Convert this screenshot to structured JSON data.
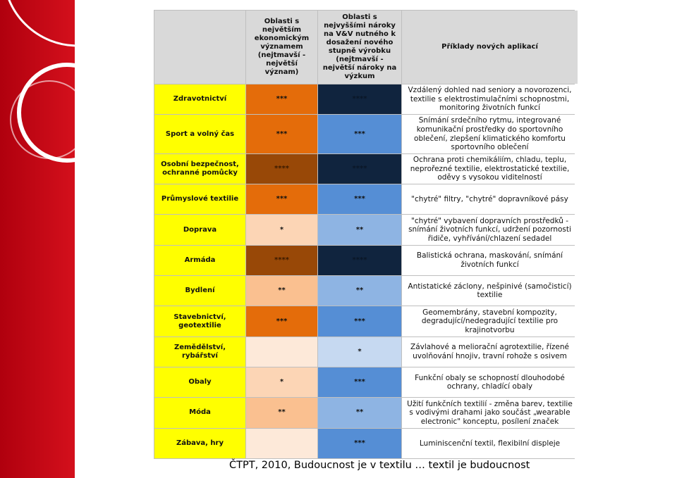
{
  "table": {
    "header": [
      "Oblasti s největším ekonomickým významem (nejtmavší - největší význam)",
      "Oblasti s nejvyššími nároky na V&V nutného k dosažení nového stupně výrobku (nejtmavší - největší nároky na výzkum",
      "Příklady nových aplikací"
    ],
    "rows": [
      {
        "sector": "Zdravotnictví",
        "economic": "***",
        "research": "****",
        "applications": "Vzdálený dohled nad seniory a novorozenci, textilie s elektrostimulačními schopnostmi, monitoring životních funkcí"
      },
      {
        "sector": "Sport a volný čas",
        "economic": "***",
        "research": "***",
        "applications": "Snímání srdečního rytmu, integrované komunikační prostředky do sportovního oblečení, zlepšení klimatického komfortu sportovního oblečení"
      },
      {
        "sector": "Osobní bezpečnost, ochranné pomůcky",
        "economic": "****",
        "research": "****",
        "applications": "Ochrana proti chemikáliím, chladu, teplu, neprořezné textilie, elektrostatické textilie, oděvy s vysokou viditelností"
      },
      {
        "sector": "Průmyslové textilie",
        "economic": "***",
        "research": "***",
        "applications": "\"chytré\" filtry, \"chytré\" dopravníkové pásy"
      },
      {
        "sector": "Doprava",
        "economic": "*",
        "research": "**",
        "applications": "\"chytré\" vybavení dopravních prostředků - snímání životních funkcí, udržení pozornosti řidiče, vyhřívání/chlazení sedadel"
      },
      {
        "sector": "Armáda",
        "economic": "****",
        "research": "****",
        "applications": "Balistická ochrana, maskování, snímání životních funkcí"
      },
      {
        "sector": "Bydlení",
        "economic": "**",
        "research": "**",
        "applications": "Antistatické záclony, nešpinivé (samočisticí) textilie"
      },
      {
        "sector": "Stavebnictví, geotextilie",
        "economic": "***",
        "research": "***",
        "applications": "Geomembrány, stavební kompozity, degradující/nedegradující textilie pro krajinotvorbu"
      },
      {
        "sector": "Zemědělství, rybářství",
        "economic": null,
        "research": "*",
        "applications": "Závlahové a meliorační agrotextilie, řízené uvolňování hnojiv, travní rohože s osivem"
      },
      {
        "sector": "Obaly",
        "economic": "*",
        "research": "***",
        "applications": "Funkční obaly se schopností dlouhodobé ochrany, chladící obaly"
      },
      {
        "sector": "Móda",
        "economic": "**",
        "research": "**",
        "applications": "Užití funkčních textilií - změna barev, textilie s vodivými drahami jako součást „wearable electronic\" konceptu, posílení značek"
      },
      {
        "sector": "Zábava, hry",
        "economic": null,
        "research": "***",
        "applications": "Luminiscenční textil, flexibilní displeje"
      }
    ]
  },
  "footer": "ČTPT, 2010, Budoucnost je v textilu … textil je budoucnost"
}
